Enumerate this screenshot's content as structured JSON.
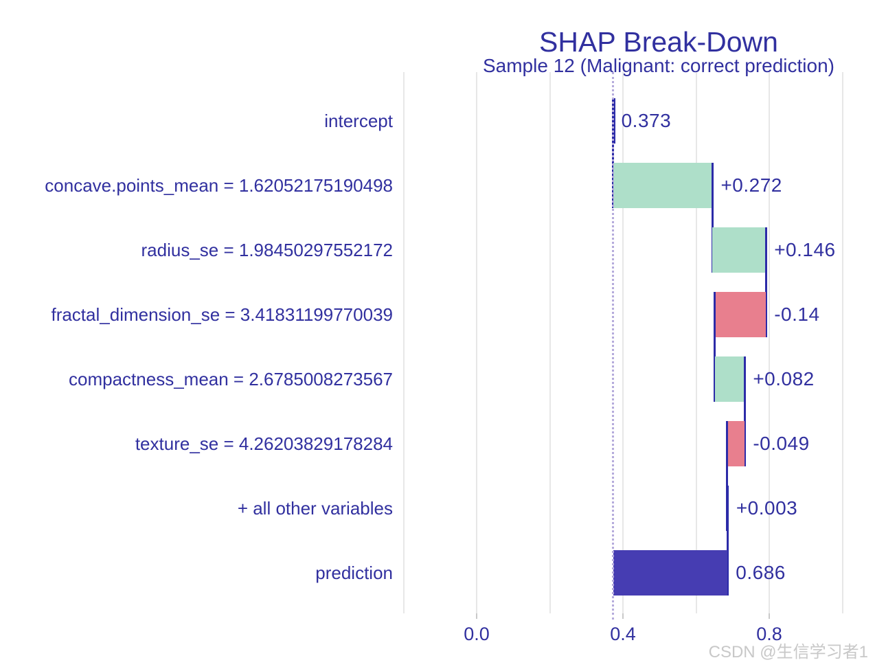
{
  "watermark": "CSDN @生信学习者1",
  "chart_data": {
    "type": "bar",
    "variant": "shap-breakdown-waterfall",
    "title": "SHAP Break-Down",
    "subtitle": "Sample 12 (Malignant: correct prediction)",
    "orientation": "horizontal",
    "baseline_intercept": 0.373,
    "x_axis": {
      "tick_labels": [
        "0.0",
        "0.4",
        "0.8"
      ],
      "major_breaks": [
        0.0,
        0.4,
        0.8
      ],
      "minor_breaks": [
        -0.2,
        0.2,
        0.6,
        1.0
      ],
      "range": [
        -0.205,
        1.09
      ],
      "grid": true
    },
    "rows": [
      {
        "label": "intercept",
        "kind": "intercept",
        "start": 0.373,
        "end": 0.373,
        "contribution": 0.373,
        "value_label": "0.373"
      },
      {
        "label": "concave.points_mean = 1.62052175190498",
        "kind": "positive",
        "start": 0.373,
        "end": 0.645,
        "contribution": 0.272,
        "value_label": "+0.272"
      },
      {
        "label": "radius_se = 1.98450297552172",
        "kind": "positive",
        "start": 0.645,
        "end": 0.791,
        "contribution": 0.146,
        "value_label": "+0.146"
      },
      {
        "label": "fractal_dimension_se = 3.41831199770039",
        "kind": "negative",
        "start": 0.791,
        "end": 0.651,
        "contribution": -0.14,
        "value_label": "-0.14"
      },
      {
        "label": "compactness_mean = 2.6785008273567",
        "kind": "positive",
        "start": 0.651,
        "end": 0.733,
        "contribution": 0.082,
        "value_label": "+0.082"
      },
      {
        "label": "texture_se = 4.26203829178284",
        "kind": "negative",
        "start": 0.733,
        "end": 0.684,
        "contribution": -0.049,
        "value_label": "-0.049"
      },
      {
        "label": "+ all other variables",
        "kind": "positive",
        "start": 0.684,
        "end": 0.687,
        "contribution": 0.003,
        "value_label": "+0.003"
      },
      {
        "label": "prediction",
        "kind": "prediction",
        "start": 0.373,
        "end": 0.686,
        "contribution": 0.686,
        "value_label": "0.686"
      }
    ],
    "colors": {
      "positive": "#aedfc9",
      "negative": "#e87f8e",
      "prediction": "#463db2",
      "connector": "#2c2ba8",
      "text": "#31309f",
      "gridline": "#e7e7e7",
      "tick": "#c9c9c9",
      "dotted_guide": "#b5abdc",
      "watermark": "#c8c8c8",
      "background": "#ffffff"
    }
  }
}
